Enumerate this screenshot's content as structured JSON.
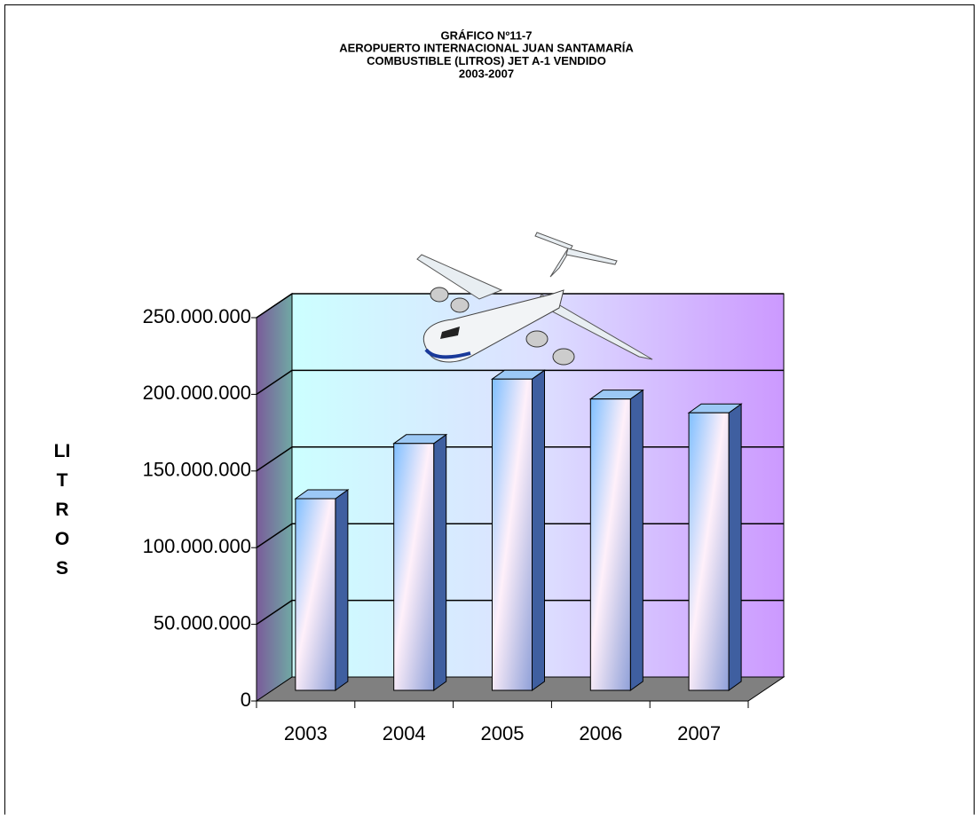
{
  "chart_data": {
    "type": "bar3d",
    "title": [
      "GRÁFICO Nº11-7",
      "AEROPUERTO INTERNACIONAL JUAN SANTAMARÍA",
      "COMBUSTIBLE (LITROS) JET A-1 VENDIDO",
      "2003-2007"
    ],
    "y_label": "LITROS",
    "categories": [
      "2003",
      "2004",
      "2005",
      "2006",
      "2007"
    ],
    "values": [
      125000000,
      161000000,
      203000000,
      190000000,
      181000000
    ],
    "ylim": [
      0,
      250000000
    ],
    "yticks": [
      0,
      {
        "value": 50000000,
        "label": "50.000.000"
      },
      {
        "value": 100000000,
        "label": "100.000.000"
      },
      {
        "value": 150000000,
        "label": "150.000.000"
      },
      {
        "value": 200000000,
        "label": "200.000.000"
      },
      {
        "value": 250000000,
        "label": "250.000.000"
      }
    ],
    "grid": true
  }
}
